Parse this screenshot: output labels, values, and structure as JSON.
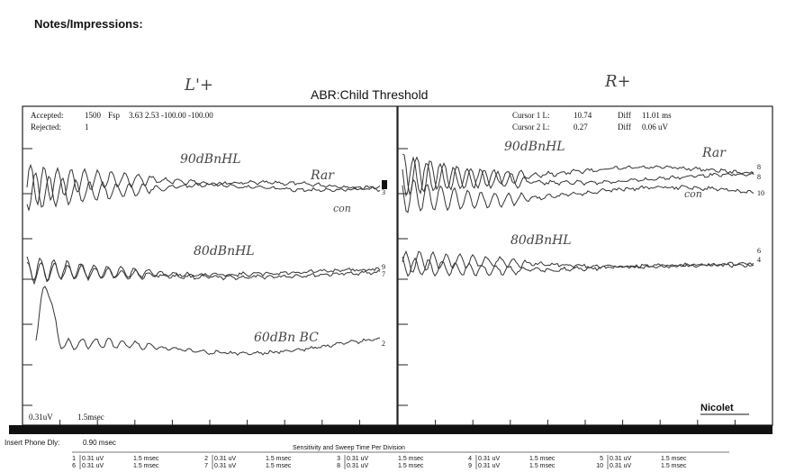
{
  "header": {
    "notes_label": "Notes/Impressions:",
    "title": "ABR:Child Threshold",
    "left_annotation": "L'+",
    "right_annotation": "R+"
  },
  "left_panel": {
    "info": [
      [
        "Accepted:",
        "1500",
        "Fsp",
        "3.63 2.53 -100.00 -100.00"
      ],
      [
        "Rejected:",
        "1"
      ]
    ],
    "annotations": [
      "90dBnHL",
      "Rar",
      "con",
      "80dBnHL",
      "60dBn BC"
    ],
    "trace_labels": [
      "3",
      "9",
      "7",
      "2"
    ],
    "scale": "0.31uV",
    "sweep": "1.5msec"
  },
  "right_panel": {
    "cursor": [
      [
        "Cursor 1 L:",
        "10.74",
        "Diff",
        "11.01 ms"
      ],
      [
        "Cursor 2 L:",
        "0.27",
        "Diff",
        "0.06 uV"
      ]
    ],
    "annotations": [
      "90dBnHL",
      "Rar",
      "con",
      "80dBnHL"
    ],
    "trace_labels": [
      "8",
      "8",
      "10",
      "6",
      "4"
    ],
    "brand": "Nicolet"
  },
  "footer": {
    "delay_label": "Insert Phone Dly:",
    "delay": "0.90 msec",
    "table_title": "Sensitivity and Sweep Time Per Division",
    "entries": [
      [
        "1",
        "0.31 uV",
        "1.5 msec"
      ],
      [
        "2",
        "0.31 uV",
        "1.5 msec"
      ],
      [
        "3",
        "0.31 uV",
        "1.5 msec"
      ],
      [
        "4",
        "0.31 uV",
        "1.5 msec"
      ],
      [
        "5",
        "0.31 uV",
        "1.5 msec"
      ],
      [
        "6",
        "0.31 uV",
        "1.5 msec"
      ],
      [
        "7",
        "0.31 uV",
        "1.5 msec"
      ],
      [
        "8",
        "0.31 uV",
        "1.5 msec"
      ],
      [
        "9",
        "0.31 uV",
        "1.5 msec"
      ],
      [
        "10",
        "0.31 uV",
        "1.5 msec"
      ]
    ]
  }
}
